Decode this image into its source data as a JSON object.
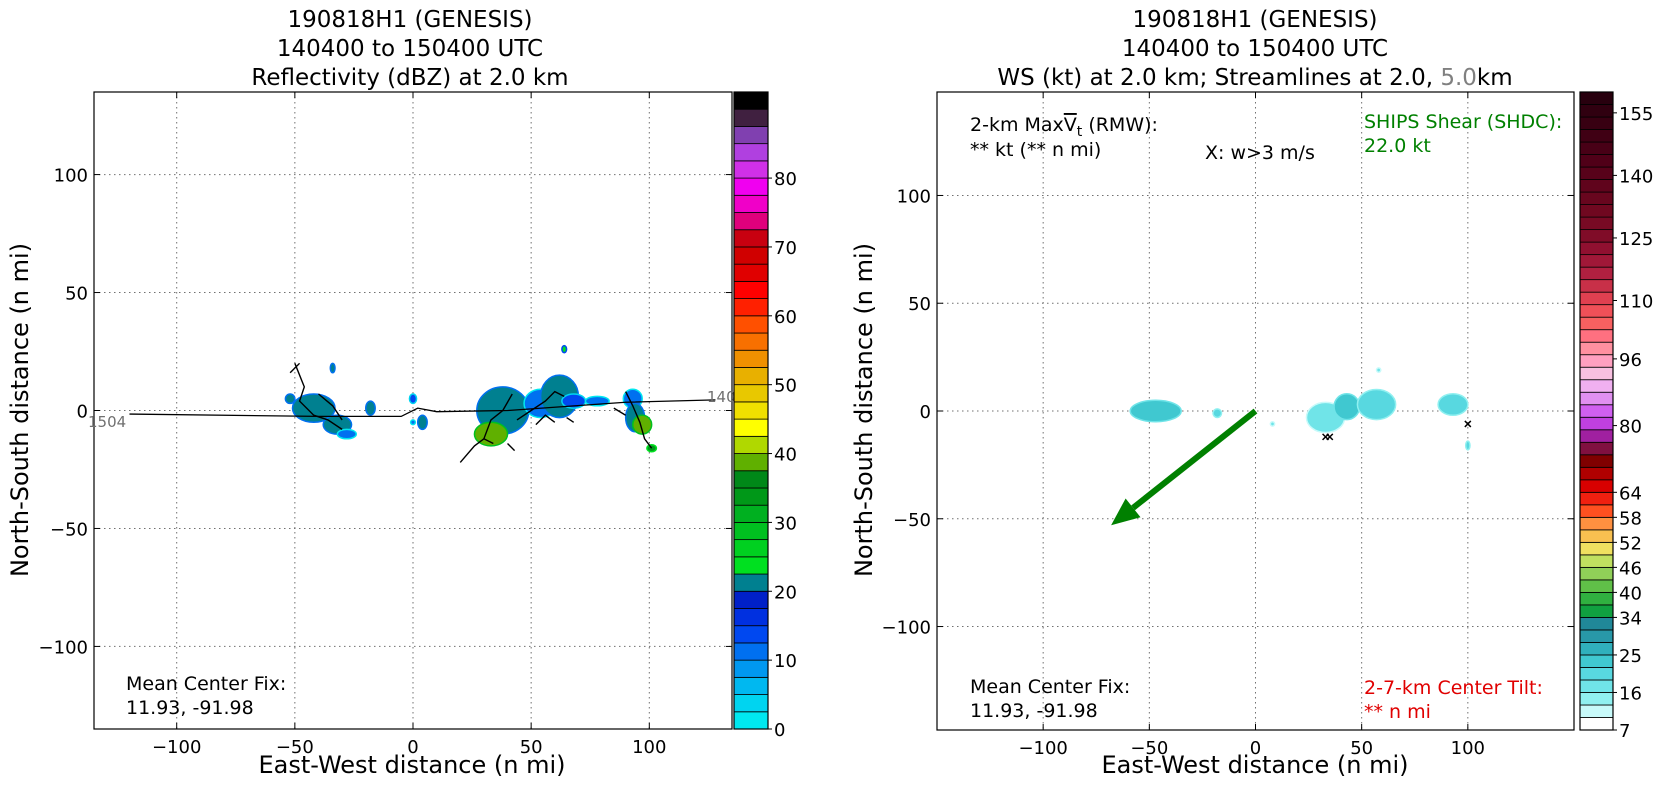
{
  "chart_data": [
    {
      "type": "heatmap",
      "title_lines": [
        "190818H1 (GENESIS)",
        "140400 to 150400 UTC",
        "Reflectivity (dBZ) at 2.0 km"
      ],
      "xlabel": "East-West distance (n mi)",
      "ylabel": "North-South distance (n mi)",
      "xlim": [
        -135,
        135
      ],
      "ylim": [
        -135,
        135
      ],
      "xticks": [
        -100,
        -50,
        0,
        50,
        100
      ],
      "yticks": [
        -100,
        -50,
        0,
        50,
        100
      ],
      "xtick_labels": [
        "−100",
        "−50",
        "0",
        "50",
        "100"
      ],
      "ytick_labels": [
        "−100",
        "−50",
        "0",
        "50",
        "100"
      ],
      "grid": true,
      "colorbar": {
        "min": 0,
        "max": 80,
        "step": 2.5,
        "tick_values": [
          0,
          10,
          20,
          30,
          40,
          50,
          60,
          70,
          80
        ],
        "tick_labels": [
          "0",
          "10",
          "20",
          "30",
          "40",
          "50",
          "60",
          "70",
          "80"
        ],
        "colors": [
          "#00e8f0",
          "#00d4f0",
          "#00b8f0",
          "#0098f0",
          "#0070f0",
          "#0048f0",
          "#0030e0",
          "#0020c8",
          "#008090",
          "#00e020",
          "#00d020",
          "#00c020",
          "#00b020",
          "#009818",
          "#008818",
          "#60b000",
          "#b0d800",
          "#ffff00",
          "#f0e000",
          "#e8c800",
          "#e8b000",
          "#f09000",
          "#f87000",
          "#ff5000",
          "#ff2000",
          "#ff0000",
          "#e00000",
          "#d00000",
          "#c80010",
          "#e0007c",
          "#f000c8",
          "#f000f0",
          "#d030e8",
          "#b040e0",
          "#8040b0",
          "#402040",
          "#000000"
        ]
      },
      "track": {
        "points": [
          [
            -120,
            -1.5
          ],
          [
            -40,
            -2.5
          ],
          [
            -5,
            -2.5
          ],
          [
            2,
            1
          ],
          [
            10,
            -0.5
          ],
          [
            40,
            0
          ],
          [
            90,
            3.5
          ],
          [
            128,
            4.5
          ]
        ],
        "start_label": "1504",
        "end_label": "140"
      },
      "echo_cells": [
        {
          "x": -42,
          "y": 1,
          "rx": 9,
          "ry": 6,
          "level": 22
        },
        {
          "x": -32,
          "y": -6,
          "rx": 6,
          "ry": 4,
          "level": 20
        },
        {
          "x": -52,
          "y": 5,
          "rx": 2,
          "ry": 2,
          "level": 20
        },
        {
          "x": -28,
          "y": -10,
          "rx": 4,
          "ry": 2,
          "level": 12
        },
        {
          "x": -18,
          "y": 1,
          "rx": 2,
          "ry": 3,
          "level": 20
        },
        {
          "x": -34,
          "y": 18,
          "rx": 1,
          "ry": 2,
          "level": 22
        },
        {
          "x": 0,
          "y": 5,
          "rx": 1.5,
          "ry": 2,
          "level": 14
        },
        {
          "x": 0,
          "y": -5,
          "rx": 1,
          "ry": 1,
          "level": 12
        },
        {
          "x": 4,
          "y": -5,
          "rx": 2,
          "ry": 3,
          "level": 20
        },
        {
          "x": 38,
          "y": 0,
          "rx": 11,
          "ry": 10,
          "level": 20
        },
        {
          "x": 33,
          "y": -10,
          "rx": 7,
          "ry": 5,
          "level": 38
        },
        {
          "x": 54,
          "y": 3,
          "rx": 7,
          "ry": 6,
          "level": 12
        },
        {
          "x": 62,
          "y": 6,
          "rx": 8,
          "ry": 9,
          "level": 22
        },
        {
          "x": 68,
          "y": 4,
          "rx": 5,
          "ry": 3,
          "level": 14
        },
        {
          "x": 78,
          "y": 4,
          "rx": 5,
          "ry": 2,
          "level": 12
        },
        {
          "x": 93,
          "y": 5,
          "rx": 4,
          "ry": 4,
          "level": 12
        },
        {
          "x": 94,
          "y": -3,
          "rx": 4,
          "ry": 6,
          "level": 22
        },
        {
          "x": 97,
          "y": -6,
          "rx": 4,
          "ry": 4,
          "level": 38
        },
        {
          "x": 101,
          "y": -16,
          "rx": 2,
          "ry": 1.5,
          "level": 34
        },
        {
          "x": 64,
          "y": 26,
          "rx": 1,
          "ry": 1.5,
          "level": 24
        }
      ],
      "annotation_lines": [
        "Mean Center Fix:",
        "11.93, -91.98"
      ]
    },
    {
      "type": "heatmap",
      "title_lines": [
        "190818H1 (GENESIS)",
        "140400 to 150400 UTC",
        "WS (kt) at 2.0 km; Streamlines at 2.0, ",
        "5.0",
        "km"
      ],
      "xlabel": "East-West distance (n mi)",
      "ylabel": "North-South distance (n mi)",
      "xlim": [
        -150,
        150
      ],
      "ylim": [
        -148,
        148
      ],
      "xticks": [
        -100,
        -50,
        0,
        50,
        100
      ],
      "yticks": [
        -100,
        -50,
        0,
        50,
        100
      ],
      "xtick_labels": [
        "−100",
        "−50",
        "0",
        "50",
        "100"
      ],
      "ytick_labels": [
        "−100",
        "−50",
        "0",
        "50",
        "100"
      ],
      "grid": true,
      "colorbar": {
        "min": 7,
        "max": 160,
        "step": 3,
        "tick_values": [
          7,
          16,
          25,
          34,
          40,
          46,
          52,
          58,
          64,
          80,
          96,
          110,
          125,
          140,
          155
        ],
        "tick_labels": [
          "7",
          "16",
          "25",
          "34",
          "40",
          "46",
          "52",
          "58",
          "64",
          "80",
          "96",
          "110",
          "125",
          "140",
          "155"
        ],
        "colors": [
          "#ffffff",
          "#c8fafa",
          "#90f0f0",
          "#70e4e8",
          "#58d8e0",
          "#40c8d0",
          "#30b0bc",
          "#2898a8",
          "#208898",
          "#10a040",
          "#30b040",
          "#60c048",
          "#90d058",
          "#c0e060",
          "#f0e060",
          "#f8c050",
          "#ff9040",
          "#ff5020",
          "#f02010",
          "#d80000",
          "#b00000",
          "#800000",
          "#801040",
          "#a020a0",
          "#c040e0",
          "#d060f0",
          "#e090f0",
          "#f0b0f0",
          "#f8c0e0",
          "#ffa0c0",
          "#ff90a0",
          "#ff7080",
          "#f86060",
          "#f05058",
          "#e04050",
          "#c83048",
          "#b02040",
          "#a01838",
          "#901030",
          "#800c28",
          "#780a24",
          "#700820",
          "#68061e",
          "#60041c",
          "#58021a",
          "#500018",
          "#480016",
          "#400014",
          "#380012",
          "#300010",
          "#28000e"
        ]
      },
      "wind_cells": [
        {
          "x": -47,
          "y": 0,
          "rx": 12,
          "ry": 5,
          "level": 22
        },
        {
          "x": -18,
          "y": -1,
          "rx": 2,
          "ry": 2,
          "level": 20
        },
        {
          "x": 8,
          "y": -6,
          "rx": 1,
          "ry": 1,
          "level": 18
        },
        {
          "x": 33,
          "y": -3,
          "rx": 9,
          "ry": 7,
          "level": 18
        },
        {
          "x": 43,
          "y": 2,
          "rx": 6,
          "ry": 6,
          "level": 22
        },
        {
          "x": 57,
          "y": 3,
          "rx": 9,
          "ry": 7,
          "level": 20
        },
        {
          "x": 93,
          "y": 3,
          "rx": 7,
          "ry": 5,
          "level": 20
        },
        {
          "x": 100,
          "y": -16,
          "rx": 1,
          "ry": 2,
          "level": 20
        },
        {
          "x": 58,
          "y": 19,
          "rx": 1,
          "ry": 1,
          "level": 18
        }
      ],
      "updraft_marks": [
        [
          33,
          -12
        ],
        [
          35,
          -12
        ],
        [
          100,
          -6
        ]
      ],
      "shear_vector": {
        "from": [
          0,
          0
        ],
        "to": [
          -68,
          -53
        ],
        "color": "#008000"
      },
      "upper_left_lines": [
        "2-km Max",
        "V",
        "t",
        " (RMW):",
        "** kt (** n mi)"
      ],
      "updraft_note": "X: w>3 m/s",
      "shear_lines": [
        "SHIPS Shear (SHDC):",
        "22.0 kt"
      ],
      "annotation_lines": [
        "Mean Center Fix:",
        "11.93, -91.98"
      ],
      "tilt_lines": [
        "2-7-km Center Tilt:",
        "** n mi"
      ],
      "colors": {
        "shear_text": "#008000",
        "tilt_text": "#e00000",
        "gray_text": "#808080"
      }
    }
  ]
}
